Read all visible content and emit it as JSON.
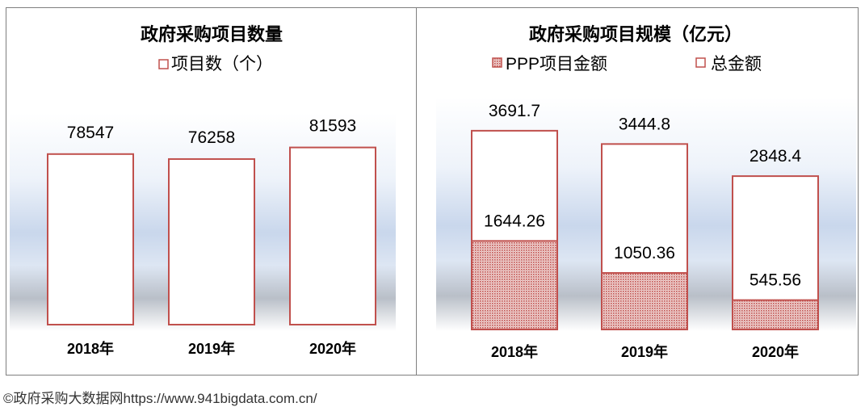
{
  "chart_data": [
    {
      "type": "bar",
      "title": "政府采购项目数量",
      "categories": [
        "2018年",
        "2019年",
        "2020年"
      ],
      "series": [
        {
          "name": "项目数（个）",
          "values": [
            78547,
            76258,
            81593
          ]
        }
      ],
      "value_labels": [
        "78547",
        "76258",
        "81593"
      ],
      "ylim": [
        0,
        90000
      ],
      "grid": false,
      "legend_position": "top",
      "colors": {
        "outline": "#c0504d",
        "fill": "#ffffff"
      }
    },
    {
      "type": "bar",
      "title": "政府采购项目规模（亿元）",
      "categories": [
        "2018年",
        "2019年",
        "2020年"
      ],
      "series": [
        {
          "name": "PPP项目金额",
          "values": [
            1644.26,
            1050.36,
            545.56
          ]
        },
        {
          "name": "总金额",
          "values": [
            3691.7,
            3444.8,
            2848.4
          ]
        }
      ],
      "ppp_labels": [
        "1644.26",
        "1050.36",
        "545.56"
      ],
      "total_labels": [
        "3691.7",
        "3444.8",
        "2848.4"
      ],
      "ylim": [
        0,
        4200
      ],
      "grid": false,
      "legend_position": "top",
      "colors": {
        "outline": "#c0504d",
        "ppp_fill": "#c0504d",
        "fill": "#ffffff"
      }
    }
  ],
  "source": "©政府采购大数据网https://www.941bigdata.com.cn/"
}
